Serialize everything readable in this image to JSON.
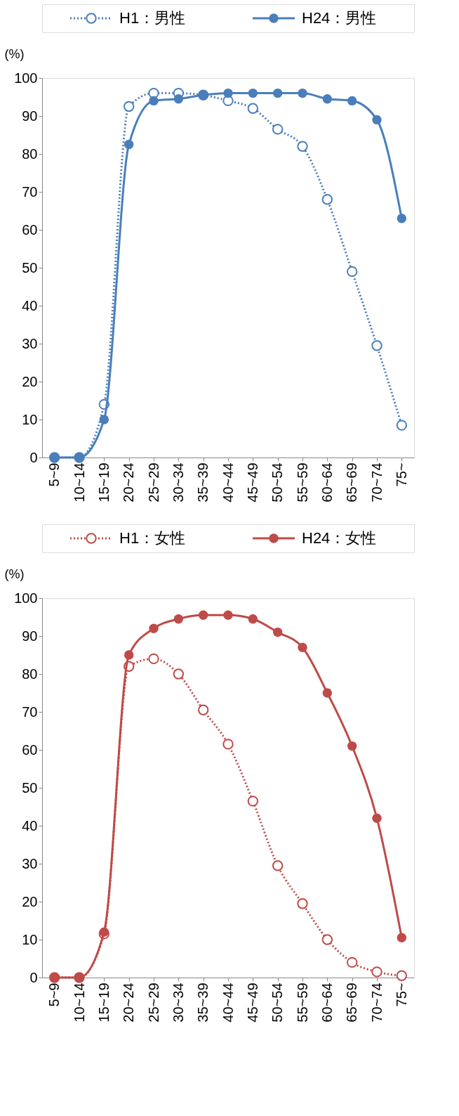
{
  "chart_data": [
    {
      "type": "line",
      "ylabel": "(%)",
      "categories": [
        "5~9",
        "10~14",
        "15~19",
        "20~24",
        "25~29",
        "30~34",
        "35~39",
        "40~44",
        "45~49",
        "50~54",
        "55~59",
        "60~64",
        "65~69",
        "70~74",
        "75~"
      ],
      "ylim": [
        0,
        100
      ],
      "yticks": [
        0,
        10,
        20,
        30,
        40,
        50,
        60,
        70,
        80,
        90,
        100
      ],
      "grid": false,
      "legend": "top",
      "marker": "circle",
      "series": [
        {
          "name": "H1：男性",
          "color": "#4a7ebb",
          "line_style": "dotted",
          "values": [
            0,
            0,
            14,
            92.5,
            96,
            96,
            95.5,
            94,
            92,
            86.5,
            82,
            68,
            49,
            29.5,
            8.5
          ]
        },
        {
          "name": "H24：男性",
          "color": "#4a7ebb",
          "line_style": "solid",
          "values": [
            0,
            0,
            10,
            82.5,
            94,
            94.5,
            95.5,
            96,
            96,
            96,
            96,
            94.5,
            94,
            89,
            63
          ]
        }
      ]
    },
    {
      "type": "line",
      "ylabel": "(%)",
      "categories": [
        "5~9",
        "10~14",
        "15~19",
        "20~24",
        "25~29",
        "30~34",
        "35~39",
        "40~44",
        "45~49",
        "50~54",
        "55~59",
        "60~64",
        "65~69",
        "70~74",
        "75~"
      ],
      "ylim": [
        0,
        100
      ],
      "yticks": [
        0,
        10,
        20,
        30,
        40,
        50,
        60,
        70,
        80,
        90,
        100
      ],
      "grid": false,
      "legend": "top",
      "marker": "circle",
      "series": [
        {
          "name": "H1：女性",
          "color": "#be4b48",
          "line_style": "dotted",
          "values": [
            0,
            0,
            11.5,
            82,
            84,
            80,
            70.5,
            61.5,
            46.5,
            29.5,
            19.5,
            10,
            4,
            1.5,
            0.5
          ]
        },
        {
          "name": "H24：女性",
          "color": "#be4b48",
          "line_style": "solid",
          "values": [
            0,
            0,
            12,
            85,
            92,
            94.5,
            95.5,
            95.5,
            94.5,
            91,
            87,
            75,
            61,
            42,
            10.5
          ]
        }
      ]
    }
  ]
}
